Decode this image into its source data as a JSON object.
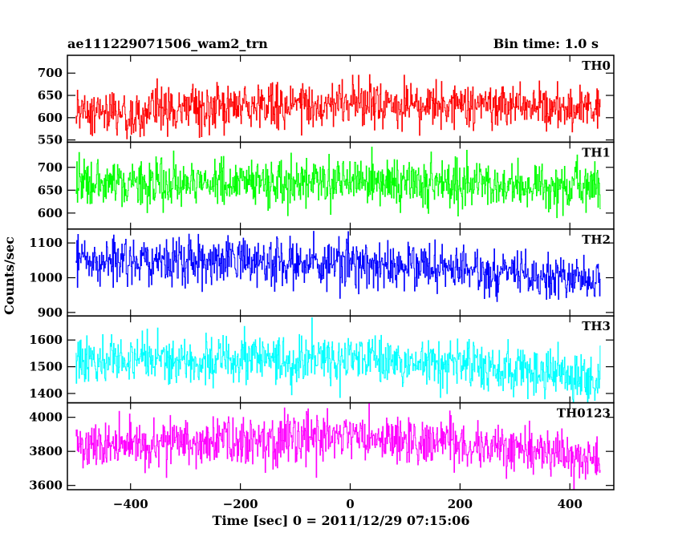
{
  "chart_data": {
    "type": "line",
    "title": "ae111229071506_wam2_trn",
    "subtitle": "Bin time: 1.0 s",
    "xlabel": "Time [sec] 0 = 2011/12/29 07:15:06",
    "ylabel": "Counts/sec",
    "xlim": [
      -515,
      480
    ],
    "x_range": [
      -500,
      455
    ],
    "x_step": 1,
    "x_ticks": [
      -400,
      -200,
      0,
      200,
      400
    ],
    "x_tick_labels": [
      "−400",
      "−200",
      "0",
      "200",
      "400"
    ],
    "grid": false,
    "panels": [
      {
        "name": "TH0",
        "color": "#ff0000",
        "ylim": [
          545,
          740
        ],
        "y_ticks": [
          550,
          600,
          650,
          700
        ],
        "y_tick_labels": [
          "550",
          "600",
          "650",
          "700"
        ],
        "trend": [
          [
            -500,
            610
          ],
          [
            -300,
            618
          ],
          [
            0,
            632
          ],
          [
            200,
            628
          ],
          [
            455,
            622
          ]
        ],
        "noise_sd": 25
      },
      {
        "name": "TH1",
        "color": "#00ff00",
        "ylim": [
          565,
          755
        ],
        "y_ticks": [
          600,
          650,
          700
        ],
        "y_tick_labels": [
          "600",
          "650",
          "700"
        ],
        "trend": [
          [
            -500,
            665
          ],
          [
            -300,
            667
          ],
          [
            0,
            668
          ],
          [
            200,
            665
          ],
          [
            455,
            655
          ]
        ],
        "noise_sd": 25
      },
      {
        "name": "TH2",
        "color": "#0000ff",
        "ylim": [
          890,
          1140
        ],
        "y_ticks": [
          900,
          1000,
          1100
        ],
        "y_tick_labels": [
          "900",
          "1000",
          "1100"
        ],
        "trend": [
          [
            -500,
            1048
          ],
          [
            -300,
            1045
          ],
          [
            0,
            1040
          ],
          [
            200,
            1025
          ],
          [
            455,
            985
          ]
        ],
        "noise_sd": 32
      },
      {
        "name": "TH3",
        "color": "#00ffff",
        "ylim": [
          1365,
          1690
        ],
        "y_ticks": [
          1400,
          1500,
          1600
        ],
        "y_tick_labels": [
          "1400",
          "1500",
          "1600"
        ],
        "trend": [
          [
            -500,
            1520
          ],
          [
            -300,
            1525
          ],
          [
            0,
            1530
          ],
          [
            200,
            1512
          ],
          [
            455,
            1460
          ]
        ],
        "noise_sd": 45
      },
      {
        "name": "TH0123",
        "color": "#ff00ff",
        "ylim": [
          3575,
          4085
        ],
        "y_ticks": [
          3600,
          3800,
          4000
        ],
        "y_tick_labels": [
          "3600",
          "3800",
          "4000"
        ],
        "trend": [
          [
            -500,
            3830
          ],
          [
            -300,
            3850
          ],
          [
            0,
            3880
          ],
          [
            200,
            3850
          ],
          [
            455,
            3760
          ]
        ],
        "noise_sd": 70
      }
    ]
  }
}
